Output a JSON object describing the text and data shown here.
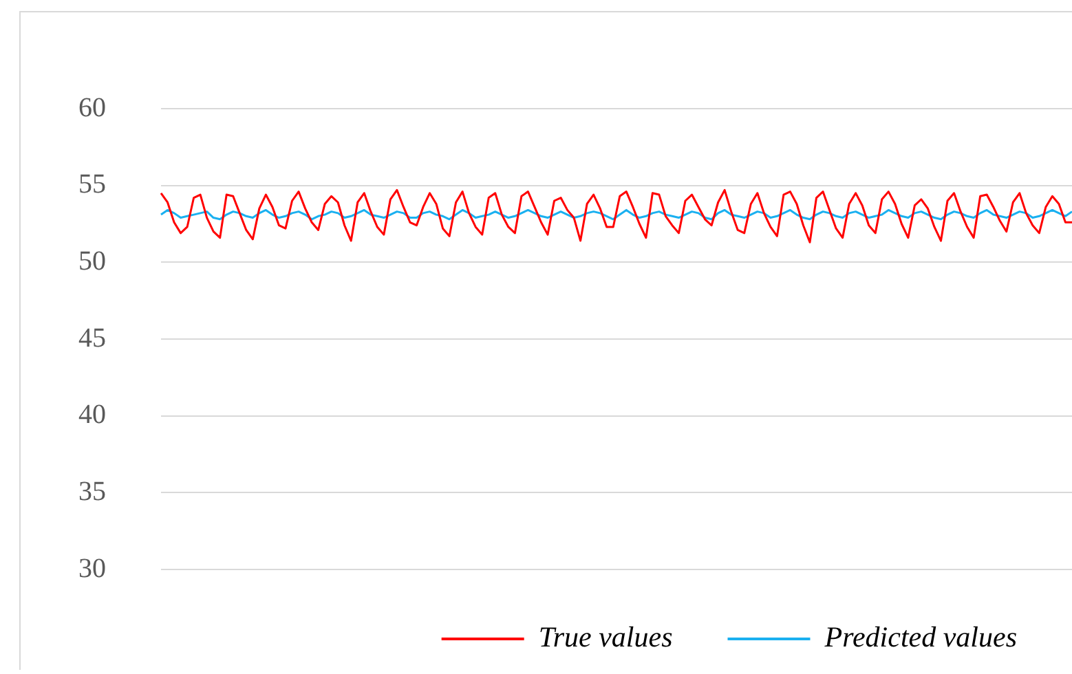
{
  "chart_data": {
    "type": "line",
    "categories": [
      null,
      null,
      null,
      null,
      null,
      null,
      null,
      null,
      null,
      null,
      null,
      null,
      null,
      null,
      null,
      null,
      null,
      null,
      null,
      null,
      null,
      null,
      null,
      null,
      null,
      null,
      null,
      null,
      null,
      null,
      null,
      null,
      null,
      null,
      null,
      null,
      null,
      null,
      null,
      null,
      null,
      null,
      null,
      null,
      null,
      null,
      null,
      null,
      null,
      null,
      null,
      null,
      null,
      null,
      null,
      null,
      null,
      null,
      null,
      null,
      null,
      null,
      null,
      null,
      null,
      null,
      null,
      null,
      null,
      null,
      null,
      null,
      null,
      null,
      null,
      null,
      null,
      null,
      null,
      null,
      null,
      null,
      null,
      null,
      null,
      null,
      null,
      null,
      null,
      null,
      null,
      null,
      null,
      null,
      null,
      null,
      null,
      null,
      null,
      null,
      null,
      null,
      null,
      null,
      null,
      null,
      null,
      null,
      null,
      null,
      null,
      null,
      null,
      null,
      null,
      null,
      null,
      null,
      null,
      null,
      null,
      null,
      null,
      null,
      null,
      null,
      null,
      null,
      null,
      null,
      null,
      null,
      null,
      null,
      null,
      null,
      null,
      null,
      null,
      null
    ],
    "series": [
      {
        "name": "True values",
        "color": "#ff0000",
        "values": [
          54.5,
          53.9,
          52.6,
          51.9,
          52.3,
          54.2,
          54.4,
          52.9,
          52.0,
          51.6,
          54.4,
          54.3,
          53.2,
          52.1,
          51.5,
          53.5,
          54.4,
          53.6,
          52.4,
          52.2,
          54.0,
          54.6,
          53.5,
          52.6,
          52.1,
          53.8,
          54.3,
          53.9,
          52.4,
          51.4,
          53.9,
          54.5,
          53.3,
          52.3,
          51.8,
          54.1,
          54.7,
          53.6,
          52.6,
          52.4,
          53.6,
          54.5,
          53.8,
          52.2,
          51.7,
          53.9,
          54.6,
          53.2,
          52.3,
          51.8,
          54.2,
          54.5,
          53.1,
          52.3,
          51.9,
          54.3,
          54.6,
          53.6,
          52.6,
          51.8,
          54.0,
          54.2,
          53.4,
          52.9,
          51.4,
          53.8,
          54.4,
          53.5,
          52.3,
          52.3,
          54.3,
          54.6,
          53.6,
          52.5,
          51.6,
          54.5,
          54.4,
          53.0,
          52.4,
          51.9,
          54.0,
          54.4,
          53.6,
          52.8,
          52.4,
          53.9,
          54.7,
          53.3,
          52.1,
          51.9,
          53.8,
          54.5,
          53.2,
          52.3,
          51.7,
          54.4,
          54.6,
          53.8,
          52.4,
          51.3,
          54.2,
          54.6,
          53.4,
          52.2,
          51.6,
          53.8,
          54.5,
          53.7,
          52.4,
          51.9,
          54.1,
          54.6,
          53.8,
          52.5,
          51.6,
          53.7,
          54.1,
          53.5,
          52.3,
          51.4,
          54.0,
          54.5,
          53.3,
          52.3,
          51.6,
          54.3,
          54.4,
          53.6,
          52.7,
          52.0,
          53.9,
          54.5,
          53.2,
          52.4,
          51.9,
          53.6,
          54.3,
          53.8,
          52.6,
          52.6
        ]
      },
      {
        "name": "Predicted values",
        "color": "#1ab0f0",
        "values": [
          53.1,
          53.4,
          53.2,
          52.9,
          53.0,
          53.1,
          53.2,
          53.3,
          52.9,
          52.8,
          53.1,
          53.3,
          53.2,
          53.0,
          52.9,
          53.2,
          53.4,
          53.1,
          52.9,
          53.0,
          53.2,
          53.3,
          53.1,
          52.8,
          53.0,
          53.1,
          53.3,
          53.2,
          52.9,
          53.0,
          53.2,
          53.4,
          53.1,
          53.0,
          52.9,
          53.1,
          53.3,
          53.2,
          52.9,
          52.9,
          53.2,
          53.3,
          53.1,
          53.0,
          52.8,
          53.1,
          53.4,
          53.2,
          52.9,
          53.0,
          53.1,
          53.3,
          53.1,
          52.9,
          53.0,
          53.2,
          53.4,
          53.2,
          53.0,
          52.9,
          53.1,
          53.3,
          53.1,
          52.9,
          53.0,
          53.2,
          53.3,
          53.2,
          53.0,
          52.8,
          53.1,
          53.4,
          53.1,
          52.9,
          53.0,
          53.2,
          53.3,
          53.1,
          53.0,
          52.9,
          53.1,
          53.3,
          53.2,
          52.9,
          52.8,
          53.2,
          53.4,
          53.1,
          53.0,
          52.9,
          53.1,
          53.3,
          53.2,
          52.9,
          53.0,
          53.2,
          53.4,
          53.1,
          52.9,
          52.8,
          53.1,
          53.3,
          53.2,
          53.0,
          52.9,
          53.2,
          53.3,
          53.1,
          52.9,
          53.0,
          53.1,
          53.4,
          53.2,
          53.0,
          52.9,
          53.2,
          53.3,
          53.1,
          52.9,
          52.8,
          53.1,
          53.3,
          53.2,
          53.0,
          52.9,
          53.2,
          53.4,
          53.1,
          53.0,
          52.9,
          53.1,
          53.3,
          53.2,
          52.9,
          53.0,
          53.2,
          53.4,
          53.2,
          53.0,
          53.3
        ]
      }
    ],
    "ylim": [
      30,
      60
    ],
    "yticks": [
      30,
      35,
      40,
      45,
      50,
      55,
      60
    ],
    "grid": "y",
    "legend": "bottom right",
    "tick_labels": "y",
    "marker": "none",
    "line_style": "solid"
  }
}
